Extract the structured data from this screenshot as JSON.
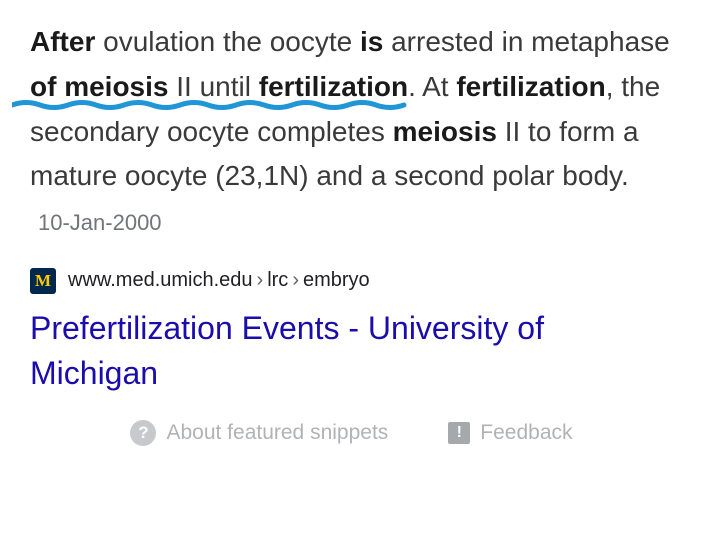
{
  "snippet": {
    "parts": [
      {
        "text": "After",
        "bold": true
      },
      {
        "text": " ovulation the oocyte ",
        "bold": false
      },
      {
        "text": "is",
        "bold": true
      },
      {
        "text": " arrested in metaphase ",
        "bold": false
      },
      {
        "text": "of meiosis",
        "bold": true
      },
      {
        "text": " II until ",
        "bold": false
      },
      {
        "text": "fertilization",
        "bold": true
      },
      {
        "text": ". At ",
        "bold": false
      },
      {
        "text": "fertilization",
        "bold": true
      },
      {
        "text": ", the secondary oocyte completes ",
        "bold": false
      },
      {
        "text": "meiosis",
        "bold": true
      },
      {
        "text": " II to form a mature oocyte (23,1N) and a second polar body.",
        "bold": false
      }
    ],
    "date": "10-Jan-2000",
    "annotation": {
      "color": "#2196d6",
      "stroke_width": 5
    }
  },
  "source": {
    "favicon_letter": "M",
    "favicon_bg": "#00274c",
    "favicon_fg": "#ffcb05",
    "domain": "www.med.umich.edu",
    "path_segments": [
      "lrc",
      "embryo"
    ]
  },
  "result": {
    "title": "Prefertilization Events - University of Michigan",
    "title_color": "#1a0dab"
  },
  "footer": {
    "about_label": "About featured snippets",
    "feedback_label": "Feedback"
  }
}
